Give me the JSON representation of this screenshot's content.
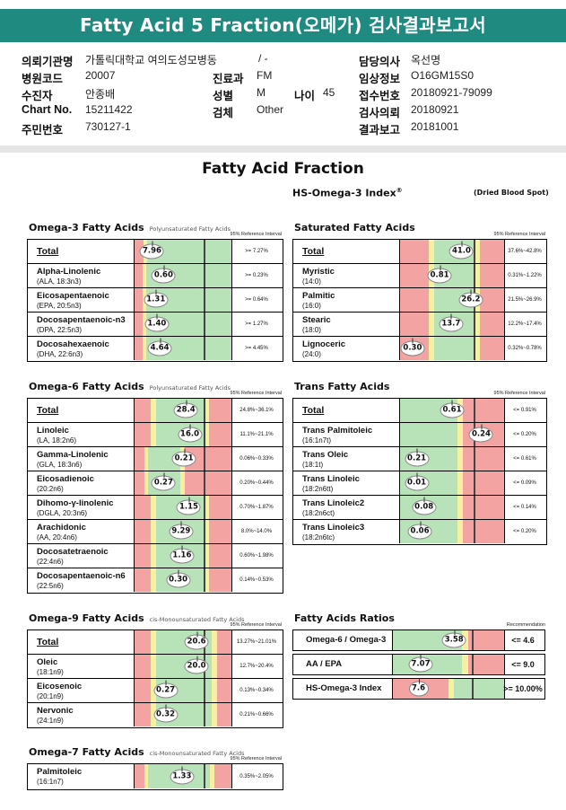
{
  "header": {
    "title": "Fatty Acid 5 Fraction(오메가) 검사결과보고서"
  },
  "info": {
    "left": [
      {
        "label": "의뢰기관명",
        "value": "가톨릭대학교 여의도성모병동"
      },
      {
        "label": "병원코드",
        "value": "20007"
      },
      {
        "label": "수진자",
        "value": "안종배"
      },
      {
        "label": "Chart No.",
        "value": "15211422"
      },
      {
        "label": "주민번호",
        "value": "730127-1"
      }
    ],
    "mid": [
      {
        "label": "",
        "value": "/ -"
      },
      {
        "label": "진료과",
        "value": "FM"
      },
      {
        "label": "성별",
        "value": "M"
      },
      {
        "label": "검체",
        "value": "Other"
      }
    ],
    "age": {
      "label": "나이",
      "value": "45"
    },
    "right": [
      {
        "label": "담당의사",
        "value": "옥선명"
      },
      {
        "label": "임상정보",
        "value": "O16GM15S0"
      },
      {
        "label": "접수번호",
        "value": "20180921-79099"
      },
      {
        "label": "검사의뢰",
        "value": "20180921"
      },
      {
        "label": "결과보고",
        "value": "20181001"
      }
    ]
  },
  "report": {
    "title": "Fatty Acid Fraction",
    "index_label": "HS-Omega-3 Index",
    "index_mark": "®",
    "sample": "(Dried Blood Spot)",
    "ref_header": "95% Reference Interval",
    "recommendation_header": "Recommendation"
  },
  "sections": {
    "omega3": {
      "title": "Omega-3 Fatty Acids",
      "subtitle": "Polyunsaturated Fatty Acids",
      "rows": [
        {
          "name": "Total",
          "sub": "",
          "value": "7.96",
          "ref": ">= 7.27%",
          "level": 0.18,
          "zones": "o3total"
        },
        {
          "name": "Alpha-Linolenic",
          "sub": "(ALA, 18:3n3)",
          "value": "0.60",
          "ref": ">= 0.23%",
          "level": 0.3,
          "zones": "o3"
        },
        {
          "name": "Eicosapentaenoic",
          "sub": "(EPA, 20:5n3)",
          "value": "1.31",
          "ref": ">= 0.64%",
          "level": 0.22,
          "zones": "o3"
        },
        {
          "name": "Docosapentaenoic-n3",
          "sub": "(DPA, 22:5n3)",
          "value": "1.40",
          "ref": ">= 1.27%",
          "level": 0.23,
          "zones": "o3"
        },
        {
          "name": "Docosahexaenoic",
          "sub": "(DHA, 22:6n3)",
          "value": "4.64",
          "ref": ">= 4.45%",
          "level": 0.26,
          "zones": "o3"
        }
      ]
    },
    "saturated": {
      "title": "Saturated Fatty Acids",
      "subtitle": "",
      "rows": [
        {
          "name": "Total",
          "sub": "",
          "value": "41.0",
          "ref": "37.6%~42.8%",
          "level": 0.59,
          "zones": "sat"
        },
        {
          "name": "Myristic",
          "sub": "(14:0)",
          "value": "0.81",
          "ref": "0.31%~1.22%",
          "level": 0.38,
          "zones": "sat"
        },
        {
          "name": "Palmitic",
          "sub": "(16:0)",
          "value": "26.2",
          "ref": "21.5%~26.9%",
          "level": 0.68,
          "zones": "sat"
        },
        {
          "name": "Stearic",
          "sub": "(18:0)",
          "value": "13.7",
          "ref": "12.2%~17.4%",
          "level": 0.49,
          "zones": "sat"
        },
        {
          "name": "Lignoceric",
          "sub": "(24:0)",
          "value": "0.30",
          "ref": "0.32%~0.78%",
          "level": 0.12,
          "zones": "sat"
        }
      ]
    },
    "omega6": {
      "title": "Omega-6 Fatty Acids",
      "subtitle": "Polyunsaturated Fatty Acids",
      "rows": [
        {
          "name": "Total",
          "sub": "",
          "value": "28.4",
          "ref": "24.8%~36.1%",
          "level": 0.53,
          "zones": "o6a"
        },
        {
          "name": "Linoleic",
          "sub": "(LA, 18:2n6)",
          "value": "16.0",
          "ref": "11.1%~21.1%",
          "level": 0.57,
          "zones": "o6a"
        },
        {
          "name": "Gamma-Linolenic",
          "sub": "(GLA, 18:3n6)",
          "value": "0.21",
          "ref": "0.06%~0.33%",
          "level": 0.51,
          "zones": "o6b"
        },
        {
          "name": "Eicosadienoic",
          "sub": "(20:2n6)",
          "value": "0.27",
          "ref": "0.20%~0.44%",
          "level": 0.3,
          "zones": "o6b"
        },
        {
          "name": "Dihomo-γ-linolenic",
          "sub": "(DGLA, 20:3n6)",
          "value": "1.15",
          "ref": "0.70%~1.87%",
          "level": 0.56,
          "zones": "o6a"
        },
        {
          "name": "Arachidonic",
          "sub": "(AA, 20:4n6)",
          "value": "9.29",
          "ref": "8.0%~14.0%",
          "level": 0.48,
          "zones": "o6a"
        },
        {
          "name": "Docosatetraenoic",
          "sub": "(22:4n6)",
          "value": "1.16",
          "ref": "0.60%~1.98%",
          "level": 0.49,
          "zones": "o6a"
        },
        {
          "name": "Docosapentaenoic-n6",
          "sub": "(22:5n6)",
          "value": "0.30",
          "ref": "0.14%~0.53%",
          "level": 0.45,
          "zones": "o6a"
        }
      ]
    },
    "trans": {
      "title": "Trans Fatty Acids",
      "subtitle": "",
      "rows": [
        {
          "name": "Total",
          "sub": "",
          "value": "0.61",
          "ref": "<= 0.91%",
          "level": 0.5,
          "zones": "trans"
        },
        {
          "name": "Trans Palmitoleic",
          "sub": "(16:1n7t)",
          "value": "0.24",
          "ref": "<= 0.20%",
          "level": 0.78,
          "zones": "trans"
        },
        {
          "name": "Trans Oleic",
          "sub": "(18:1t)",
          "value": "0.21",
          "ref": "<= 0.61%",
          "level": 0.16,
          "zones": "trans"
        },
        {
          "name": "Trans Linoleic",
          "sub": "(18:2n6tt)",
          "value": "0.01",
          "ref": "<= 0.09%",
          "level": 0.16,
          "zones": "trans"
        },
        {
          "name": "Trans Linoleic2",
          "sub": "(18:2n6ct)",
          "value": "0.08",
          "ref": "<= 0.14%",
          "level": 0.23,
          "zones": "trans"
        },
        {
          "name": "Trans Linoleic3",
          "sub": "(18:2n6tc)",
          "value": "0.06",
          "ref": "<= 0.20%",
          "level": 0.19,
          "zones": "trans"
        }
      ]
    },
    "omega9": {
      "title": "Omega-9 Fatty Acids",
      "subtitle": "cis-Monounsaturated Fatty Acids",
      "rows": [
        {
          "name": "Total",
          "sub": "",
          "value": "20.6",
          "ref": "13.27%~21.01%",
          "level": 0.64,
          "zones": "o9"
        },
        {
          "name": "Oleic",
          "sub": "(18:1n9)",
          "value": "20.0",
          "ref": "12.7%~20.4%",
          "level": 0.64,
          "zones": "o9"
        },
        {
          "name": "Eicosenoic",
          "sub": "(20:1n9)",
          "value": "0.27",
          "ref": "0.13%~0.34%",
          "level": 0.32,
          "zones": "o9"
        },
        {
          "name": "Nervonic",
          "sub": "(24:1n9)",
          "value": "0.32",
          "ref": "0.21%~0.66%",
          "level": 0.32,
          "zones": "o9"
        }
      ]
    },
    "ratios": {
      "title": "Fatty Acids Ratios",
      "subtitle": "",
      "rows": [
        {
          "name": "Omega-6 / Omega-3",
          "value": "3.58",
          "ref": "<= 4.6",
          "level": 0.55,
          "zones": "ratio"
        },
        {
          "name": "AA / EPA",
          "value": "7.07",
          "ref": "<= 9.0",
          "level": 0.25,
          "zones": "ratio"
        },
        {
          "name": "HS-Omega-3 Index",
          "value": "7.6",
          "ref": ">= 10.00%",
          "level": 0.23,
          "zones": "ratiohs"
        }
      ]
    },
    "omega7": {
      "title": "Omega-7 Fatty Acids",
      "subtitle": "cis-Monounsaturated Fatty Acids",
      "rows": [
        {
          "name": "Palmitoleic",
          "sub": "(16:1n7)",
          "value": "1.33",
          "ref": "0.35%~2.05%",
          "level": 0.49,
          "zones": "o7"
        }
      ]
    }
  },
  "colors": {
    "red": "#f4a3a3",
    "yellow": "#f6f0a0",
    "green": "#b8e2b8",
    "teal": "#1f8a80"
  }
}
